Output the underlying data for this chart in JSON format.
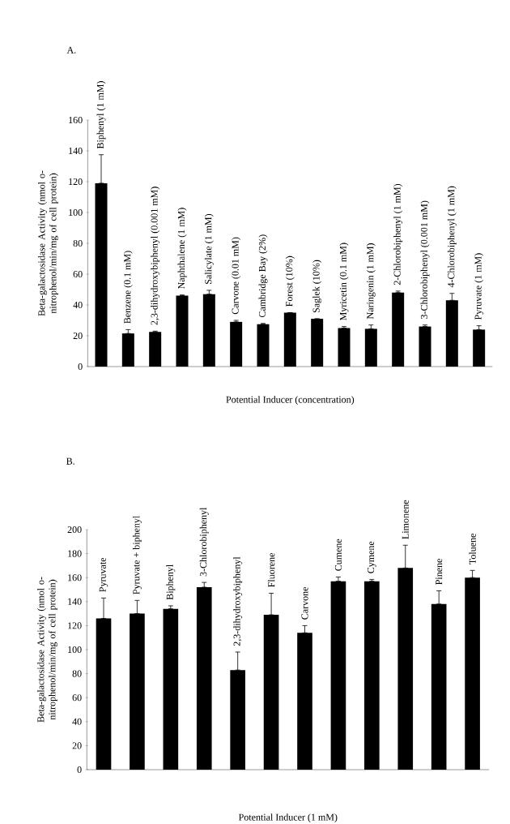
{
  "chart_data": [
    {
      "type": "bar",
      "title": "A.",
      "xlabel": "Potential Inducer (concentration)",
      "ylabel": "Beta-galactosidase Activity (nmol o-nitrophenol/min/mg of cell protein)",
      "categories": [
        "Biphenyl (1 mM)",
        "Benzene (0.1 mM)",
        "2,3-dihydroxybiphenyl (0.001 mM)",
        "Naphthalene (1 mM)",
        "Salicylate (1 mM)",
        "Carvone (0.01 mM)",
        "Cambridge Bay (2%)",
        "Forest (10%)",
        "Saglek (10%)",
        "Myricetin (0.1 mM)",
        "Naringenin (1 mM)",
        "2-Chlorobiphenyl (1 mM)",
        "3-Chlorobiphenyl (0.001 mM)",
        "4-Chlorobiphenyl (1 mM)",
        "Pyruvate (1 mM)"
      ],
      "values": [
        119,
        21.5,
        22.5,
        46,
        47,
        29,
        27.5,
        35,
        31,
        25,
        24.5,
        48,
        26,
        43,
        24
      ],
      "errors": [
        [
          119,
          137.5
        ],
        [
          21.5,
          24
        ],
        [
          22.5,
          23
        ],
        [
          46,
          46.5
        ],
        [
          47,
          49.5
        ],
        [
          29,
          30
        ],
        [
          27.5,
          28
        ],
        null,
        null,
        [
          25,
          26
        ],
        [
          24.5,
          27
        ],
        [
          48,
          49
        ],
        [
          26,
          27
        ],
        [
          43,
          47.5
        ],
        [
          24,
          26.5
        ]
      ],
      "color": "#000000",
      "ylim": [
        0,
        160
      ],
      "yticks": [
        0,
        20,
        40,
        60,
        80,
        100,
        120,
        140,
        160
      ]
    },
    {
      "type": "bar",
      "title": "B.",
      "xlabel": "Potential Inducer (1 mM)",
      "ylabel": "Beta-galactosidase Activity (nmol o-nitrophenol/min/mg of cell protein)",
      "categories": [
        "Pyruvate",
        "Pyruvate + biphenyl",
        "Biphenyl",
        "3-Chlorobiphenyl",
        "2,3-dihydroxybiphenyl",
        "Fluorene",
        "Carvone",
        "Cumene",
        "Cymene",
        "Limonene",
        "Pinene",
        "Toluene"
      ],
      "values": [
        126,
        130,
        134,
        152,
        83,
        129,
        114,
        157,
        157,
        168,
        138,
        160
      ],
      "errors": [
        [
          126,
          143
        ],
        [
          130,
          141
        ],
        [
          134,
          136.5
        ],
        [
          152,
          156
        ],
        [
          83,
          98
        ],
        [
          129,
          147
        ],
        [
          114,
          120
        ],
        [
          157,
          160.5
        ],
        [
          157,
          158.5
        ],
        [
          168,
          187
        ],
        [
          138,
          149
        ],
        [
          160,
          166
        ]
      ],
      "color": "#000000",
      "ylim": [
        0,
        200
      ],
      "yticks": [
        0,
        20,
        40,
        60,
        80,
        100,
        120,
        140,
        160,
        180,
        200
      ]
    }
  ]
}
